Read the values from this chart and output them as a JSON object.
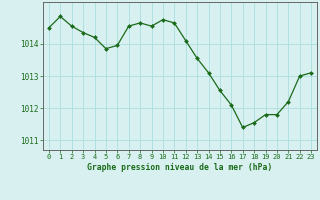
{
  "x": [
    0,
    1,
    2,
    3,
    4,
    5,
    6,
    7,
    8,
    9,
    10,
    11,
    12,
    13,
    14,
    15,
    16,
    17,
    18,
    19,
    20,
    21,
    22,
    23
  ],
  "y": [
    1014.5,
    1014.85,
    1014.55,
    1014.35,
    1014.2,
    1013.85,
    1013.95,
    1014.55,
    1014.65,
    1014.55,
    1014.75,
    1014.65,
    1014.1,
    1013.55,
    1013.1,
    1012.55,
    1012.1,
    1011.4,
    1011.55,
    1011.8,
    1011.8,
    1012.2,
    1013.0,
    1013.1
  ],
  "line_color": "#1a6b1a",
  "marker_color": "#1a6b1a",
  "bg_color": "#d8f0f0",
  "grid_color": "#aadddd",
  "axis_color": "#666666",
  "xlabel": "Graphe pression niveau de la mer (hPa)",
  "xlabel_color": "#1a6b1a",
  "tick_color": "#1a6b1a",
  "yticks": [
    1011,
    1012,
    1013,
    1014
  ],
  "xticks": [
    0,
    1,
    2,
    3,
    4,
    5,
    6,
    7,
    8,
    9,
    10,
    11,
    12,
    13,
    14,
    15,
    16,
    17,
    18,
    19,
    20,
    21,
    22,
    23
  ],
  "ylim": [
    1010.7,
    1015.3
  ],
  "xlim": [
    -0.5,
    23.5
  ],
  "figsize": [
    3.2,
    2.0
  ],
  "dpi": 100
}
